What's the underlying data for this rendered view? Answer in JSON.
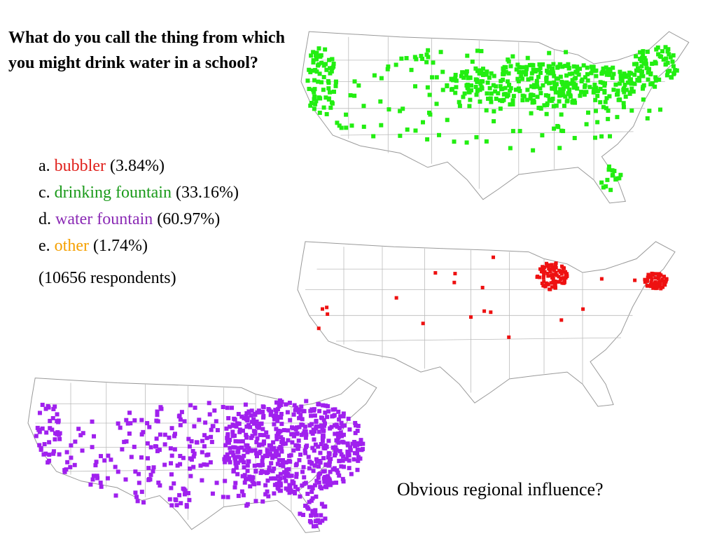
{
  "question": "What do you call the thing from which you might drink water in a school?",
  "options": [
    {
      "letter": "a.",
      "answer": "bubbler",
      "share": "(3.84%)"
    },
    {
      "letter": "c.",
      "answer": "drinking fountain",
      "share": "(33.16%)"
    },
    {
      "letter": "d.",
      "answer": "water fountain",
      "share": "(60.97%)"
    },
    {
      "letter": "e.",
      "answer": "other",
      "share": "(1.74%)"
    }
  ],
  "respondents": "(10656 respondents)",
  "note": "Obvious regional influence?"
}
